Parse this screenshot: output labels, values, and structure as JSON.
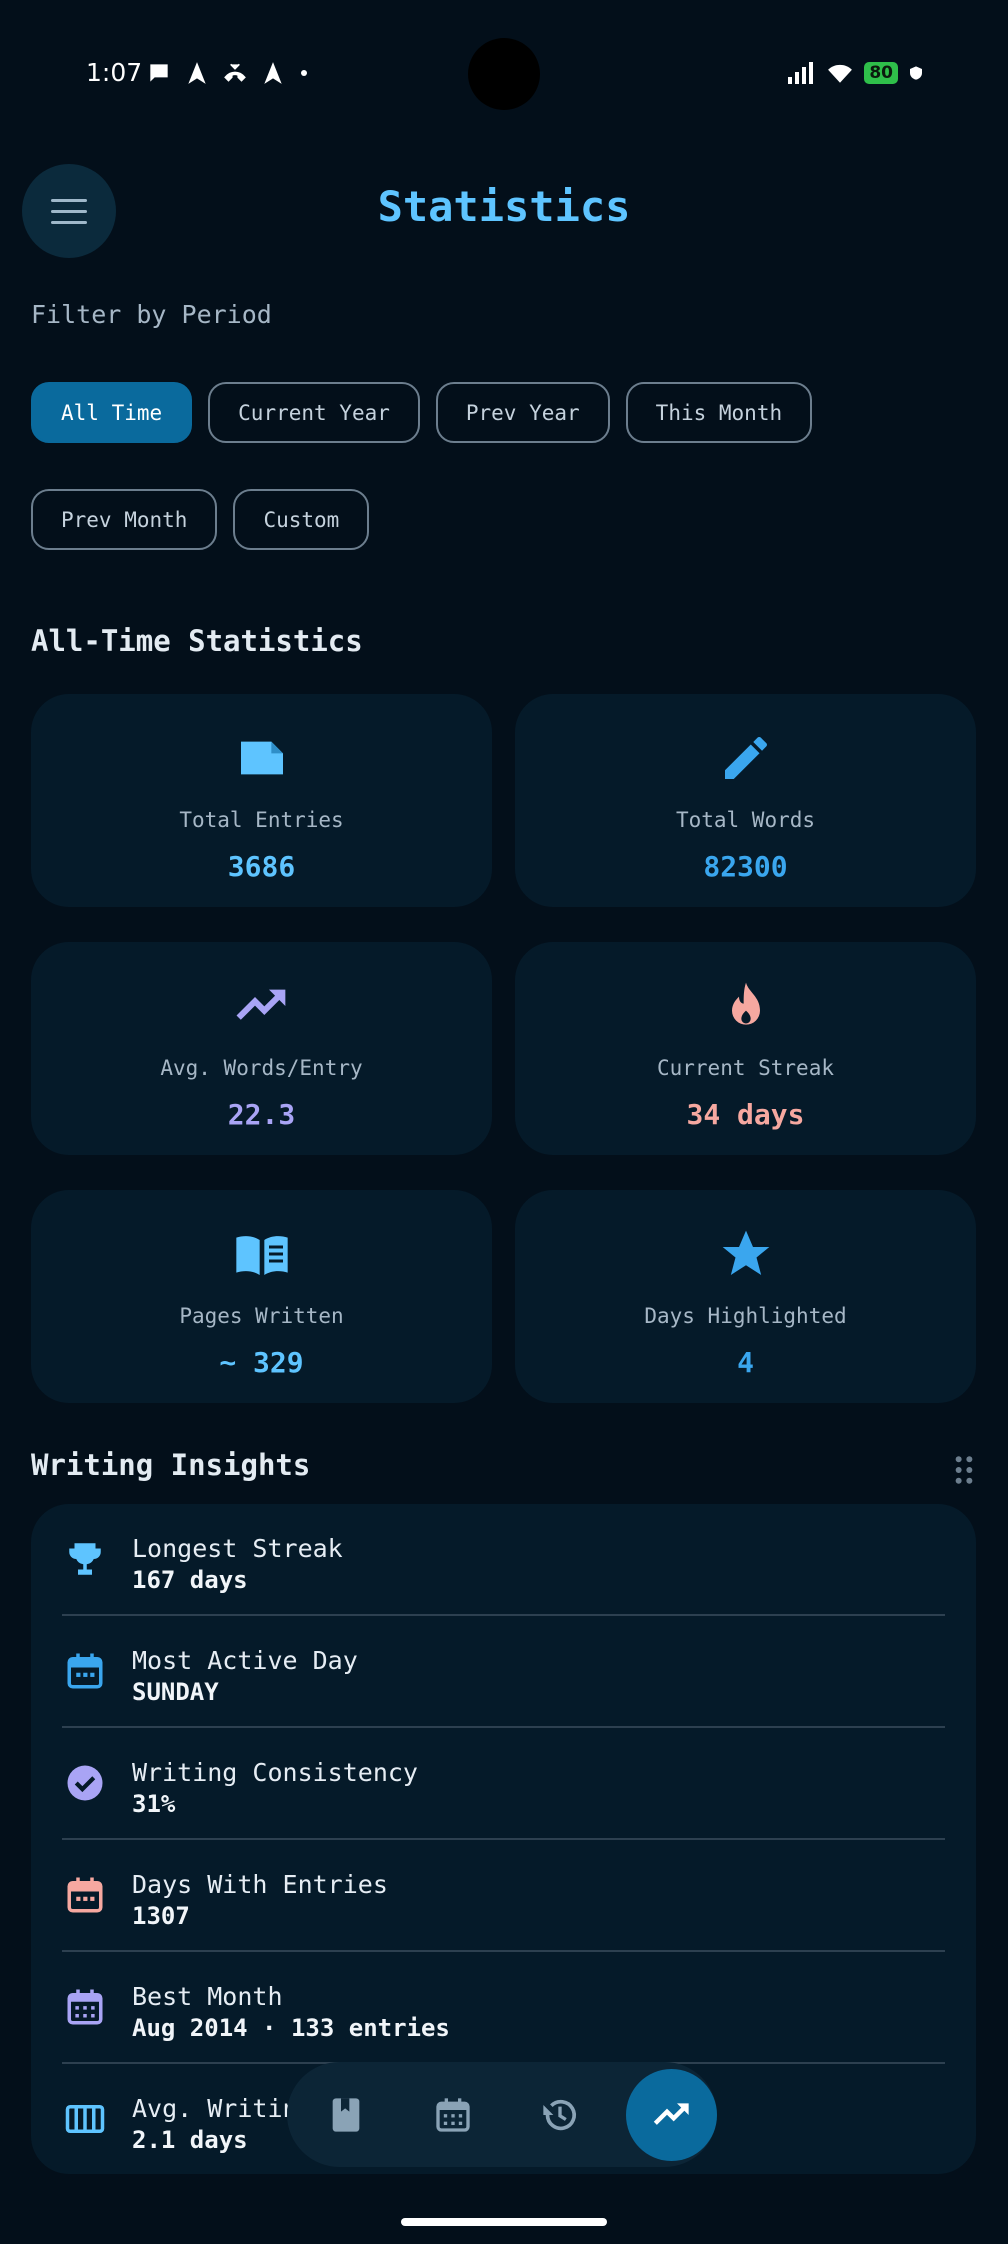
{
  "status_bar": {
    "time": "1:07",
    "battery": "80"
  },
  "header": {
    "title": "Statistics"
  },
  "filter": {
    "label": "Filter by Period",
    "chips": [
      "All Time",
      "Current Year",
      "Prev Year",
      "This Month",
      "Prev Month",
      "Custom"
    ],
    "selected": "All Time"
  },
  "stats_section": {
    "title": "All-Time Statistics",
    "cards": [
      {
        "label": "Total Entries",
        "value": "3686",
        "icon": "note-icon",
        "color": "#5ec4ff"
      },
      {
        "label": "Total Words",
        "value": "82300",
        "icon": "pencil-icon",
        "color": "#3aa6ee"
      },
      {
        "label": "Avg. Words/Entry",
        "value": "22.3",
        "icon": "trending-up-icon",
        "color": "#a9a4f5"
      },
      {
        "label": "Current Streak",
        "value": "34 days",
        "icon": "flame-icon",
        "color": "#f6a8a0"
      },
      {
        "label": "Pages Written",
        "value": "~ 329",
        "icon": "book-icon",
        "color": "#5ec4ff"
      },
      {
        "label": "Days Highlighted",
        "value": "4",
        "icon": "star-icon",
        "color": "#3aa6ee"
      }
    ]
  },
  "insights": {
    "title": "Writing Insights",
    "items": [
      {
        "label": "Longest Streak",
        "value": "167 days",
        "icon": "trophy-icon",
        "color": "#5ec4ff"
      },
      {
        "label": "Most Active Day",
        "value": "SUNDAY",
        "icon": "calendar-icon",
        "color": "#3aa6ee"
      },
      {
        "label": "Writing Consistency",
        "value": "31%",
        "icon": "check-circle-icon",
        "color": "#a9a4f5"
      },
      {
        "label": "Days With Entries",
        "value": "1307",
        "icon": "calendar-icon",
        "color": "#f6a8a0"
      },
      {
        "label": "Best Month",
        "value": "Aug 2014  ·  133 entries",
        "icon": "calendar-month-icon",
        "color": "#a9a4f5"
      },
      {
        "label": "Avg. Writin",
        "value": "2.1 days",
        "icon": "view-week-icon",
        "color": "#5ec4ff"
      }
    ]
  },
  "bottom_nav": {
    "items": [
      "book-icon",
      "calendar-icon",
      "history-icon",
      "trending-up-icon"
    ],
    "active": "trending-up-icon"
  }
}
